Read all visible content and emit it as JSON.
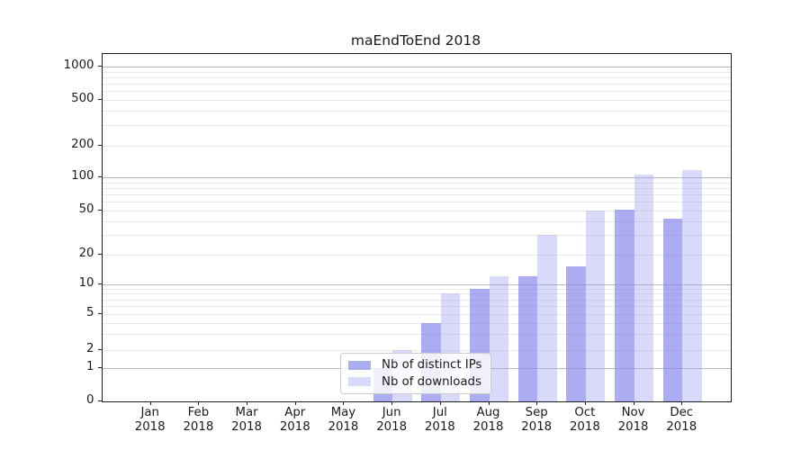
{
  "chart_data": {
    "type": "bar",
    "title": "maEndToEnd 2018",
    "x_months": [
      "Jan",
      "Feb",
      "Mar",
      "Apr",
      "May",
      "Jun",
      "Jul",
      "Aug",
      "Sep",
      "Oct",
      "Nov",
      "Dec"
    ],
    "x_year": "2018",
    "categories": [
      "Jan 2018",
      "Feb 2018",
      "Mar 2018",
      "Apr 2018",
      "May 2018",
      "Jun 2018",
      "Jul 2018",
      "Aug 2018",
      "Sep 2018",
      "Oct 2018",
      "Nov 2018",
      "Dec 2018"
    ],
    "series": [
      {
        "name": "Nb of distinct IPs",
        "color": "#8585ee",
        "values": [
          0,
          0,
          0,
          0,
          0,
          1,
          4,
          9,
          12,
          15,
          51,
          42
        ]
      },
      {
        "name": "Nb of downloads",
        "color": "#9a9af0",
        "values": [
          0,
          0,
          0,
          0,
          0,
          2,
          8,
          12,
          30,
          50,
          107,
          117
        ]
      }
    ],
    "yscale": "symlog",
    "ytick_values": [
      0,
      1,
      2,
      5,
      10,
      20,
      50,
      100,
      200,
      500,
      1000
    ],
    "ytick_labels": [
      "0",
      "1",
      "2",
      "5",
      "10",
      "20",
      "50",
      "100",
      "200",
      "500",
      "1000"
    ],
    "ylim": [
      0,
      1300
    ],
    "grid": true,
    "legend_position": "lower center"
  },
  "legend": {
    "items": [
      {
        "label": "Nb of distinct IPs"
      },
      {
        "label": "Nb of downloads"
      }
    ]
  }
}
